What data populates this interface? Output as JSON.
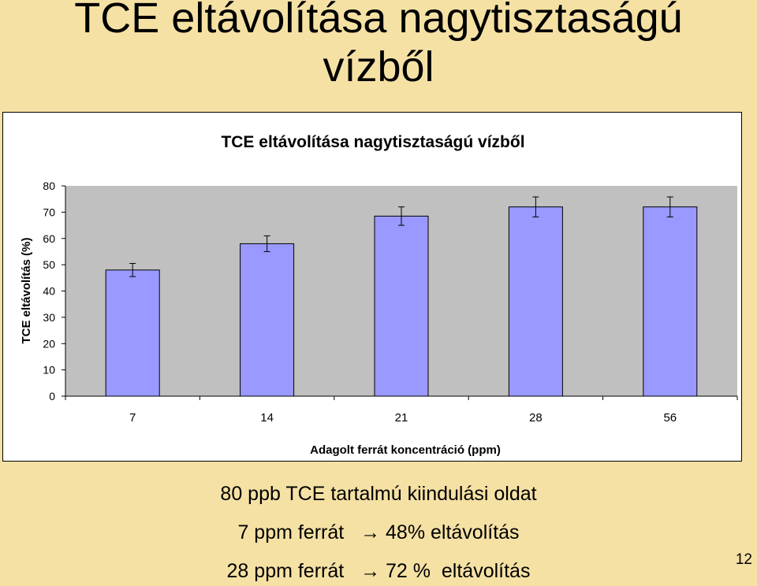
{
  "slide": {
    "title_line1": "TCE eltávolítása nagytisztaságú",
    "title_line2": "vízből",
    "caption_line1": "80 ppb TCE tartalmú kiindulási oldat",
    "caption_line2_a": "7 ppm ferrát",
    "caption_line2_b": "48% eltávolítás",
    "caption_line3_a": "28 ppm ferrát",
    "caption_line3_b": "72 %  eltávolítás",
    "arrow": "→",
    "page_number": "12"
  },
  "colors": {
    "background": "#f5e1a4",
    "plot_area": "#c0c0c0",
    "bar_fill": "#9999ff"
  },
  "chart_data": {
    "type": "bar",
    "title": "TCE eltávolítása nagytisztaságú vízből",
    "xlabel": "Adagolt ferrát koncentráció (ppm)",
    "ylabel": "TCE eltávolítás (%)",
    "categories": [
      "7",
      "14",
      "21",
      "28",
      "56"
    ],
    "values": [
      48,
      58,
      68.5,
      72,
      72
    ],
    "error": [
      2.5,
      3,
      3.5,
      3.8,
      3.8
    ],
    "ylim": [
      0,
      80
    ],
    "yticks": [
      0,
      10,
      20,
      30,
      40,
      50,
      60,
      70,
      80
    ],
    "grid": false,
    "legend": "none"
  }
}
